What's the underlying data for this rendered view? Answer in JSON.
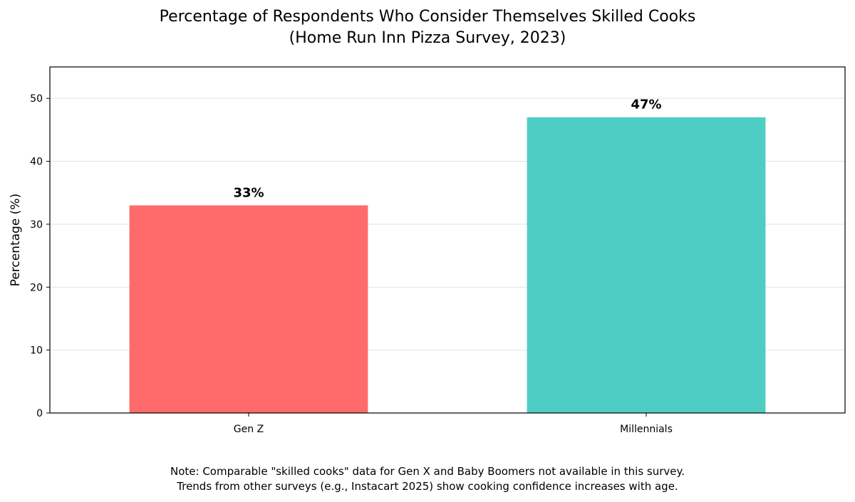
{
  "chart_data": {
    "type": "bar",
    "title": "Percentage of Respondents Who Consider Themselves Skilled Cooks",
    "subtitle": "(Home Run Inn Pizza Survey, 2023)",
    "categories": [
      "Gen Z",
      "Millennials"
    ],
    "values": [
      33,
      47
    ],
    "value_labels": [
      "33%",
      "47%"
    ],
    "colors": [
      "#FF6B6B",
      "#4ECDC4"
    ],
    "xlabel": "",
    "ylabel": "Percentage (%)",
    "ylim": [
      0,
      55
    ],
    "yticks": [
      0,
      10,
      20,
      30,
      40,
      50
    ],
    "grid": true,
    "note_lines": [
      "Note: Comparable \"skilled cooks\" data for Gen X and Baby Boomers not available in this survey.",
      "Trends from other surveys (e.g., Instacart 2025) show cooking confidence increases with age."
    ]
  }
}
